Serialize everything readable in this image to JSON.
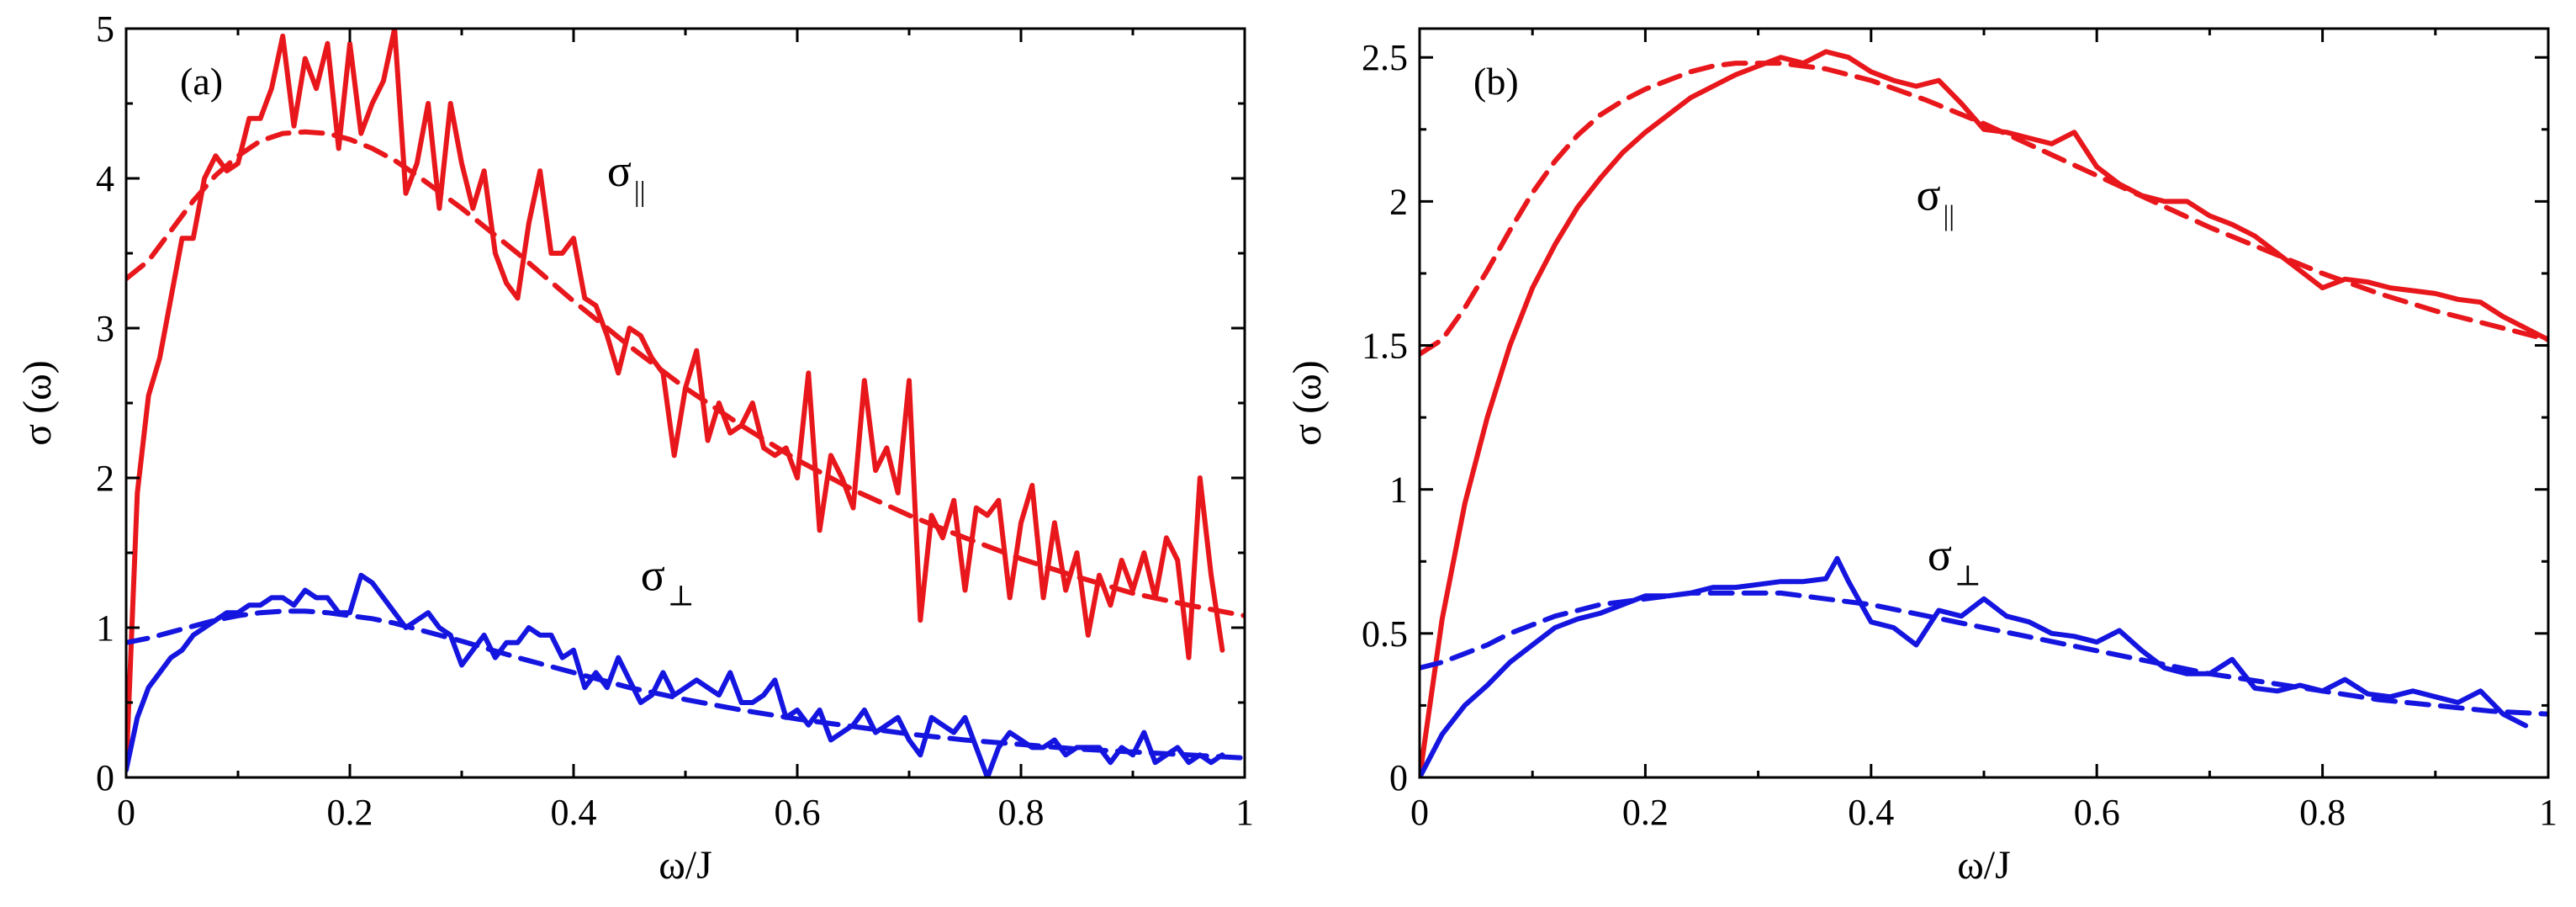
{
  "chart_data": [
    {
      "type": "line",
      "panel_label": "(a)",
      "xlabel": "ω/J",
      "ylabel": "σ (ω)",
      "xlim": [
        0,
        1
      ],
      "ylim": [
        0,
        5
      ],
      "xticks": [
        0,
        0.2,
        0.4,
        0.6,
        0.8,
        1
      ],
      "xtick_labels": [
        "0",
        "0.2",
        "0.4",
        "0.6",
        "0.8",
        "1"
      ],
      "yticks": [
        0,
        1,
        2,
        3,
        4,
        5
      ],
      "ytick_labels": [
        "0",
        "1",
        "2",
        "3",
        "4",
        "5"
      ],
      "annotations": [
        {
          "main": "σ",
          "sub": "||",
          "x": 0.43,
          "y": 3.95,
          "series_color": "#e8171c"
        },
        {
          "main": "σ",
          "sub": "⊥",
          "x": 0.46,
          "y": 1.25,
          "series_color": "#1515e0"
        }
      ],
      "series": [
        {
          "name": "σ|| data",
          "color": "#e8171c",
          "style": "solid",
          "x": [
            0,
            0.01,
            0.02,
            0.03,
            0.04,
            0.05,
            0.06,
            0.07,
            0.08,
            0.09,
            0.1,
            0.11,
            0.12,
            0.13,
            0.14,
            0.15,
            0.16,
            0.17,
            0.18,
            0.19,
            0.2,
            0.21,
            0.22,
            0.23,
            0.24,
            0.25,
            0.26,
            0.27,
            0.28,
            0.29,
            0.3,
            0.31,
            0.32,
            0.33,
            0.34,
            0.35,
            0.36,
            0.37,
            0.38,
            0.39,
            0.4,
            0.41,
            0.42,
            0.43,
            0.44,
            0.45,
            0.46,
            0.47,
            0.48,
            0.49,
            0.5,
            0.51,
            0.52,
            0.53,
            0.54,
            0.55,
            0.56,
            0.57,
            0.58,
            0.59,
            0.6,
            0.61,
            0.62,
            0.63,
            0.64,
            0.65,
            0.66,
            0.67,
            0.68,
            0.69,
            0.7,
            0.71,
            0.72,
            0.73,
            0.74,
            0.75,
            0.76,
            0.77,
            0.78,
            0.79,
            0.8,
            0.81,
            0.82,
            0.83,
            0.84,
            0.85,
            0.86,
            0.87,
            0.88,
            0.89,
            0.9,
            0.91,
            0.92,
            0.93,
            0.94,
            0.95,
            0.96,
            0.97,
            0.98
          ],
          "y": [
            0.05,
            1.9,
            2.55,
            2.8,
            3.2,
            3.6,
            3.6,
            4.0,
            4.15,
            4.05,
            4.1,
            4.4,
            4.4,
            4.6,
            4.95,
            4.35,
            4.8,
            4.6,
            4.9,
            4.2,
            4.9,
            4.3,
            4.5,
            4.65,
            5.0,
            3.9,
            4.1,
            4.5,
            3.8,
            4.5,
            4.1,
            3.8,
            4.05,
            3.5,
            3.3,
            3.2,
            3.7,
            4.05,
            3.5,
            3.5,
            3.6,
            3.2,
            3.15,
            2.95,
            2.7,
            3.0,
            2.95,
            2.8,
            2.7,
            2.15,
            2.6,
            2.85,
            2.25,
            2.5,
            2.3,
            2.35,
            2.5,
            2.2,
            2.15,
            2.2,
            2.0,
            2.7,
            1.65,
            2.15,
            2.0,
            1.8,
            2.65,
            2.05,
            2.2,
            1.9,
            2.65,
            1.05,
            1.75,
            1.6,
            1.85,
            1.25,
            1.8,
            1.75,
            1.85,
            1.2,
            1.7,
            1.95,
            1.2,
            1.7,
            1.25,
            1.5,
            0.95,
            1.35,
            1.15,
            1.45,
            1.25,
            1.5,
            1.2,
            1.6,
            1.45,
            0.8,
            2.0,
            1.35,
            0.85
          ]
        },
        {
          "name": "σ|| fit",
          "color": "#e8171c",
          "style": "dashed",
          "x": [
            0,
            0.02,
            0.04,
            0.06,
            0.08,
            0.1,
            0.12,
            0.14,
            0.16,
            0.18,
            0.2,
            0.22,
            0.24,
            0.26,
            0.28,
            0.3,
            0.35,
            0.4,
            0.45,
            0.5,
            0.55,
            0.6,
            0.65,
            0.7,
            0.75,
            0.8,
            0.85,
            0.9,
            0.95,
            1.0
          ],
          "y": [
            3.33,
            3.45,
            3.65,
            3.85,
            4.02,
            4.15,
            4.25,
            4.3,
            4.31,
            4.3,
            4.26,
            4.2,
            4.12,
            4.02,
            3.91,
            3.8,
            3.5,
            3.18,
            2.88,
            2.6,
            2.35,
            2.12,
            1.92,
            1.75,
            1.6,
            1.46,
            1.34,
            1.23,
            1.15,
            1.08
          ]
        },
        {
          "name": "σ⊥ data",
          "color": "#1515e0",
          "style": "solid",
          "x": [
            0,
            0.01,
            0.02,
            0.03,
            0.04,
            0.05,
            0.06,
            0.07,
            0.08,
            0.09,
            0.1,
            0.11,
            0.12,
            0.13,
            0.14,
            0.15,
            0.16,
            0.17,
            0.18,
            0.19,
            0.2,
            0.21,
            0.22,
            0.23,
            0.24,
            0.25,
            0.26,
            0.27,
            0.28,
            0.29,
            0.3,
            0.31,
            0.32,
            0.33,
            0.34,
            0.35,
            0.36,
            0.37,
            0.38,
            0.39,
            0.4,
            0.41,
            0.42,
            0.43,
            0.44,
            0.45,
            0.46,
            0.47,
            0.48,
            0.49,
            0.5,
            0.51,
            0.52,
            0.53,
            0.54,
            0.55,
            0.56,
            0.57,
            0.58,
            0.59,
            0.6,
            0.61,
            0.62,
            0.63,
            0.64,
            0.65,
            0.66,
            0.67,
            0.68,
            0.69,
            0.7,
            0.71,
            0.72,
            0.73,
            0.74,
            0.75,
            0.76,
            0.77,
            0.78,
            0.79,
            0.8,
            0.81,
            0.82,
            0.83,
            0.84,
            0.85,
            0.86,
            0.87,
            0.88,
            0.89,
            0.9,
            0.91,
            0.92,
            0.93,
            0.94,
            0.95,
            0.96,
            0.97,
            0.98
          ],
          "y": [
            0.05,
            0.4,
            0.6,
            0.7,
            0.8,
            0.85,
            0.95,
            1.0,
            1.05,
            1.1,
            1.1,
            1.15,
            1.15,
            1.2,
            1.2,
            1.15,
            1.25,
            1.2,
            1.2,
            1.1,
            1.1,
            1.35,
            1.3,
            1.2,
            1.1,
            1.0,
            1.05,
            1.1,
            1.0,
            0.95,
            0.75,
            0.85,
            0.95,
            0.8,
            0.9,
            0.9,
            1.0,
            0.95,
            0.95,
            0.8,
            0.85,
            0.6,
            0.7,
            0.6,
            0.8,
            0.65,
            0.5,
            0.55,
            0.7,
            0.55,
            0.6,
            0.65,
            0.6,
            0.55,
            0.7,
            0.5,
            0.5,
            0.55,
            0.65,
            0.4,
            0.45,
            0.35,
            0.45,
            0.25,
            0.3,
            0.35,
            0.45,
            0.3,
            0.35,
            0.4,
            0.25,
            0.15,
            0.4,
            0.35,
            0.3,
            0.4,
            0.2,
            0.0,
            0.2,
            0.3,
            0.25,
            0.2,
            0.2,
            0.25,
            0.15,
            0.2,
            0.2,
            0.2,
            0.1,
            0.2,
            0.15,
            0.3,
            0.1,
            0.15,
            0.2,
            0.1,
            0.15,
            0.1,
            0.15
          ]
        },
        {
          "name": "σ⊥ fit",
          "color": "#1515e0",
          "style": "dashed",
          "x": [
            0,
            0.02,
            0.04,
            0.06,
            0.08,
            0.1,
            0.12,
            0.14,
            0.16,
            0.18,
            0.2,
            0.22,
            0.24,
            0.26,
            0.28,
            0.3,
            0.35,
            0.4,
            0.45,
            0.5,
            0.55,
            0.6,
            0.65,
            0.7,
            0.75,
            0.8,
            0.85,
            0.9,
            0.95,
            1.0
          ],
          "y": [
            0.9,
            0.93,
            0.97,
            1.01,
            1.05,
            1.08,
            1.1,
            1.11,
            1.11,
            1.1,
            1.08,
            1.06,
            1.03,
            0.99,
            0.95,
            0.91,
            0.8,
            0.7,
            0.6,
            0.52,
            0.45,
            0.39,
            0.34,
            0.29,
            0.25,
            0.22,
            0.19,
            0.17,
            0.15,
            0.13
          ]
        }
      ]
    },
    {
      "type": "line",
      "panel_label": "(b)",
      "xlabel": "ω/J",
      "ylabel": "σ (ω)",
      "xlim": [
        0,
        1
      ],
      "ylim": [
        0,
        2.6
      ],
      "xticks": [
        0,
        0.2,
        0.4,
        0.6,
        0.8,
        1
      ],
      "xtick_labels": [
        "0",
        "0.2",
        "0.4",
        "0.6",
        "0.8",
        "1"
      ],
      "yticks": [
        0,
        0.5,
        1,
        1.5,
        2,
        2.5
      ],
      "ytick_labels": [
        "0",
        "0.5",
        "1",
        "1.5",
        "2",
        "2.5"
      ],
      "annotations": [
        {
          "main": "σ",
          "sub": "||",
          "x": 0.44,
          "y": 1.97,
          "series_color": "#e8171c"
        },
        {
          "main": "σ",
          "sub": "⊥",
          "x": 0.45,
          "y": 0.72,
          "series_color": "#1515e0"
        }
      ],
      "series": [
        {
          "name": "σ|| data",
          "color": "#e8171c",
          "style": "solid",
          "x": [
            0,
            0.02,
            0.04,
            0.06,
            0.08,
            0.1,
            0.12,
            0.14,
            0.16,
            0.18,
            0.2,
            0.22,
            0.24,
            0.26,
            0.28,
            0.3,
            0.32,
            0.34,
            0.36,
            0.38,
            0.4,
            0.42,
            0.44,
            0.46,
            0.48,
            0.5,
            0.52,
            0.54,
            0.56,
            0.58,
            0.6,
            0.62,
            0.64,
            0.66,
            0.68,
            0.7,
            0.72,
            0.74,
            0.76,
            0.78,
            0.8,
            0.82,
            0.84,
            0.86,
            0.88,
            0.9,
            0.92,
            0.94,
            0.96,
            0.98,
            1.0
          ],
          "y": [
            0.0,
            0.55,
            0.95,
            1.25,
            1.5,
            1.7,
            1.85,
            1.98,
            2.08,
            2.17,
            2.24,
            2.3,
            2.36,
            2.4,
            2.44,
            2.47,
            2.5,
            2.48,
            2.52,
            2.5,
            2.45,
            2.42,
            2.4,
            2.42,
            2.34,
            2.25,
            2.24,
            2.22,
            2.2,
            2.24,
            2.12,
            2.06,
            2.02,
            2.0,
            2.0,
            1.95,
            1.92,
            1.88,
            1.82,
            1.76,
            1.7,
            1.73,
            1.72,
            1.7,
            1.69,
            1.68,
            1.66,
            1.65,
            1.6,
            1.56,
            1.52
          ]
        },
        {
          "name": "σ|| fit",
          "color": "#e8171c",
          "style": "dashed",
          "x": [
            0,
            0.02,
            0.04,
            0.06,
            0.08,
            0.1,
            0.12,
            0.14,
            0.16,
            0.18,
            0.2,
            0.22,
            0.24,
            0.26,
            0.28,
            0.3,
            0.32,
            0.34,
            0.36,
            0.38,
            0.4,
            0.45,
            0.5,
            0.55,
            0.6,
            0.65,
            0.7,
            0.75,
            0.8,
            0.85,
            0.9,
            0.95,
            1.0
          ],
          "y": [
            1.47,
            1.52,
            1.63,
            1.76,
            1.9,
            2.03,
            2.14,
            2.23,
            2.3,
            2.35,
            2.39,
            2.42,
            2.45,
            2.47,
            2.48,
            2.48,
            2.48,
            2.47,
            2.46,
            2.44,
            2.42,
            2.35,
            2.27,
            2.18,
            2.09,
            2.0,
            1.91,
            1.83,
            1.75,
            1.68,
            1.62,
            1.57,
            1.52
          ]
        },
        {
          "name": "σ⊥ data",
          "color": "#1515e0",
          "style": "solid",
          "x": [
            0,
            0.02,
            0.04,
            0.06,
            0.08,
            0.1,
            0.12,
            0.14,
            0.16,
            0.18,
            0.2,
            0.22,
            0.24,
            0.26,
            0.28,
            0.3,
            0.32,
            0.34,
            0.36,
            0.37,
            0.38,
            0.4,
            0.42,
            0.44,
            0.46,
            0.48,
            0.5,
            0.52,
            0.54,
            0.56,
            0.58,
            0.6,
            0.62,
            0.64,
            0.66,
            0.68,
            0.7,
            0.72,
            0.74,
            0.76,
            0.78,
            0.8,
            0.82,
            0.84,
            0.86,
            0.88,
            0.9,
            0.92,
            0.94,
            0.96,
            0.98
          ],
          "y": [
            0.0,
            0.15,
            0.25,
            0.32,
            0.4,
            0.46,
            0.52,
            0.55,
            0.57,
            0.6,
            0.63,
            0.63,
            0.64,
            0.66,
            0.66,
            0.67,
            0.68,
            0.68,
            0.69,
            0.76,
            0.68,
            0.54,
            0.52,
            0.46,
            0.58,
            0.56,
            0.62,
            0.56,
            0.54,
            0.5,
            0.49,
            0.47,
            0.51,
            0.44,
            0.38,
            0.36,
            0.36,
            0.41,
            0.31,
            0.3,
            0.32,
            0.3,
            0.34,
            0.29,
            0.28,
            0.3,
            0.28,
            0.26,
            0.3,
            0.22,
            0.18
          ]
        },
        {
          "name": "σ⊥ fit",
          "color": "#1515e0",
          "style": "dashed",
          "x": [
            0,
            0.02,
            0.04,
            0.06,
            0.08,
            0.1,
            0.12,
            0.14,
            0.16,
            0.18,
            0.2,
            0.22,
            0.24,
            0.26,
            0.28,
            0.3,
            0.32,
            0.34,
            0.36,
            0.38,
            0.4,
            0.45,
            0.5,
            0.55,
            0.6,
            0.65,
            0.7,
            0.75,
            0.8,
            0.85,
            0.9,
            0.95,
            1.0
          ],
          "y": [
            0.38,
            0.4,
            0.43,
            0.46,
            0.5,
            0.53,
            0.56,
            0.58,
            0.6,
            0.61,
            0.62,
            0.63,
            0.64,
            0.64,
            0.64,
            0.64,
            0.64,
            0.63,
            0.62,
            0.61,
            0.6,
            0.56,
            0.52,
            0.48,
            0.44,
            0.4,
            0.36,
            0.33,
            0.3,
            0.27,
            0.25,
            0.23,
            0.22
          ]
        }
      ]
    }
  ]
}
